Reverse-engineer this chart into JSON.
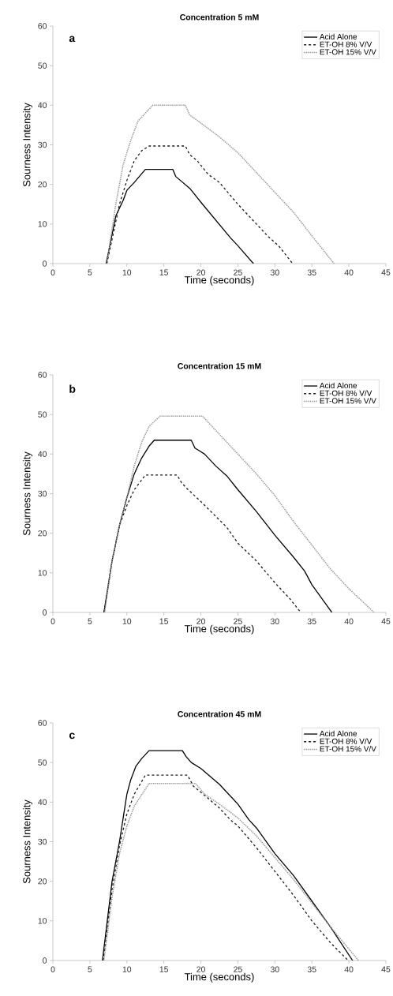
{
  "chart_data": [
    {
      "type": "line",
      "title": "Concentration 5 mM",
      "xlabel": "Time (seconds)",
      "ylabel": "Sourness  Intensity",
      "annotations": [
        "a"
      ],
      "xlim": [
        0,
        45
      ],
      "xticks": [
        0,
        5,
        10,
        15,
        20,
        25,
        30,
        35,
        40,
        45
      ],
      "ylim": [
        0,
        60
      ],
      "yticks": [
        0,
        10,
        20,
        30,
        40,
        50,
        60
      ],
      "grid": false,
      "legend": "top right",
      "marker": "none",
      "series": [
        {
          "name": "Acid Alone",
          "color": "#000000",
          "line_style": "solid",
          "x": [
            7.2,
            8.5,
            9.5,
            10,
            11,
            12.5,
            16.2,
            16.6,
            18.5,
            20,
            22,
            24,
            25,
            27.1
          ],
          "values": [
            0,
            12,
            16,
            18.5,
            20.5,
            23.8,
            23.8,
            22,
            19,
            15.5,
            11,
            6.5,
            4.5,
            0
          ]
        },
        {
          "name": "ET-OH  8%  V/V",
          "color": "#1a1a1a",
          "line_style": "dashed",
          "x": [
            7.3,
            9,
            10,
            11,
            12,
            13,
            17.9,
            18.5,
            19.5,
            21,
            22.5,
            25,
            27.5,
            29,
            30.5,
            32.4
          ],
          "values": [
            0,
            15,
            21,
            26,
            28.5,
            29.7,
            29.7,
            27.5,
            26,
            22.5,
            20.5,
            15,
            10,
            7,
            4.5,
            0
          ]
        },
        {
          "name": "ET-OH  15%  V/V",
          "color": "#999999",
          "line_style": "dotted",
          "x": [
            7.3,
            8.5,
            9.5,
            10.5,
            11.5,
            13.5,
            17.9,
            18.5,
            20,
            22.5,
            25,
            27.5,
            30,
            32.5,
            35,
            38
          ],
          "values": [
            0,
            15,
            25,
            31,
            36,
            40,
            40,
            37.5,
            35.5,
            32,
            28,
            23,
            18,
            13,
            7,
            0
          ]
        }
      ]
    },
    {
      "type": "line",
      "title": "Concentration 15 mM",
      "xlabel": "Time (seconds)",
      "ylabel": "Sourness  Intensity",
      "annotations": [
        "b"
      ],
      "xlim": [
        0,
        45
      ],
      "xticks": [
        0,
        5,
        10,
        15,
        20,
        25,
        30,
        35,
        40,
        45
      ],
      "ylim": [
        0,
        60
      ],
      "yticks": [
        0,
        10,
        20,
        30,
        40,
        50,
        60
      ],
      "grid": false,
      "legend": "top right",
      "marker": "none",
      "series": [
        {
          "name": "Acid Alone",
          "color": "#000000",
          "line_style": "solid",
          "x": [
            6.9,
            8,
            9,
            10,
            11,
            12,
            13,
            13.7,
            18.7,
            19.2,
            20.5,
            22,
            23.5,
            25,
            27.5,
            30,
            32.5,
            34,
            35,
            37.7
          ],
          "values": [
            0,
            13,
            22,
            29,
            35,
            39,
            42,
            43.5,
            43.5,
            41.5,
            40,
            37,
            34.5,
            31,
            25.5,
            19.5,
            14,
            10.5,
            7,
            0
          ]
        },
        {
          "name": "ET-OH  8%  V/V",
          "color": "#1a1a1a",
          "line_style": "dashed",
          "x": [
            6.9,
            8,
            9,
            10,
            11,
            12.5,
            16.8,
            17.3,
            18,
            20,
            23.5,
            25,
            27.5,
            30,
            32,
            33.5
          ],
          "values": [
            0,
            13,
            22,
            27,
            31,
            34.7,
            34.7,
            33,
            31.5,
            28,
            21.5,
            17.5,
            13,
            7.5,
            3.5,
            0
          ]
        },
        {
          "name": "ET-OH  15%  V/V",
          "color": "#999999",
          "line_style": "dotted",
          "x": [
            7,
            8,
            9,
            10,
            11,
            12,
            13,
            14.5,
            20.2,
            22.5,
            25,
            27.5,
            30,
            32.5,
            35,
            37.5,
            40,
            43.4
          ],
          "values": [
            0,
            13,
            22,
            29,
            37,
            43,
            47,
            49.6,
            49.6,
            45,
            40,
            35,
            29.5,
            23,
            17,
            11,
            6,
            0
          ]
        }
      ]
    },
    {
      "type": "line",
      "title": "Concentration 45 mM",
      "xlabel": "Time (seconds)",
      "ylabel": "Sourness  Intensity",
      "annotations": [
        "c"
      ],
      "xlim": [
        0,
        45
      ],
      "xticks": [
        0,
        5,
        10,
        15,
        20,
        25,
        30,
        35,
        40,
        45
      ],
      "ylim": [
        0,
        60
      ],
      "yticks": [
        0,
        10,
        20,
        30,
        40,
        50,
        60
      ],
      "grid": false,
      "legend": "top right",
      "marker": "none",
      "series": [
        {
          "name": "Acid Alone",
          "color": "#000000",
          "line_style": "solid",
          "x": [
            6.7,
            8,
            9,
            9.5,
            10,
            10.5,
            11.2,
            12,
            13,
            17.5,
            18,
            18.7,
            20,
            22.5,
            25,
            26.5,
            27.5,
            30,
            32.5,
            35,
            37.5,
            40.5
          ],
          "values": [
            0,
            20,
            30,
            36,
            42,
            45.5,
            49,
            51,
            53,
            53,
            51.5,
            50,
            48.5,
            44.5,
            39.5,
            35.5,
            33.5,
            27,
            21.5,
            15,
            8.5,
            0
          ]
        },
        {
          "name": "ET-OH  8%  V/V",
          "color": "#1a1a1a",
          "line_style": "dashed",
          "x": [
            6.8,
            8,
            9,
            10,
            11,
            12.5,
            18.2,
            19,
            20,
            22.5,
            24,
            25,
            27.5,
            30,
            32.5,
            35,
            37.5,
            39.9
          ],
          "values": [
            0,
            18,
            29,
            37,
            42,
            46.8,
            46.8,
            44,
            42.5,
            38.5,
            35.5,
            34,
            28.5,
            22.5,
            16.5,
            10,
            4.5,
            0
          ]
        },
        {
          "name": "ET-OH  15%  V/V",
          "color": "#999999",
          "line_style": "dotted",
          "x": [
            6.9,
            8,
            9,
            10,
            11,
            13,
            19.3,
            20.5,
            22.5,
            25,
            27.5,
            30,
            32.5,
            35,
            37.5,
            41.3
          ],
          "values": [
            0,
            16,
            27,
            34,
            39,
            44.7,
            44.7,
            42,
            39.5,
            36,
            31.5,
            26,
            20.5,
            14.5,
            8.5,
            0
          ]
        }
      ]
    }
  ]
}
